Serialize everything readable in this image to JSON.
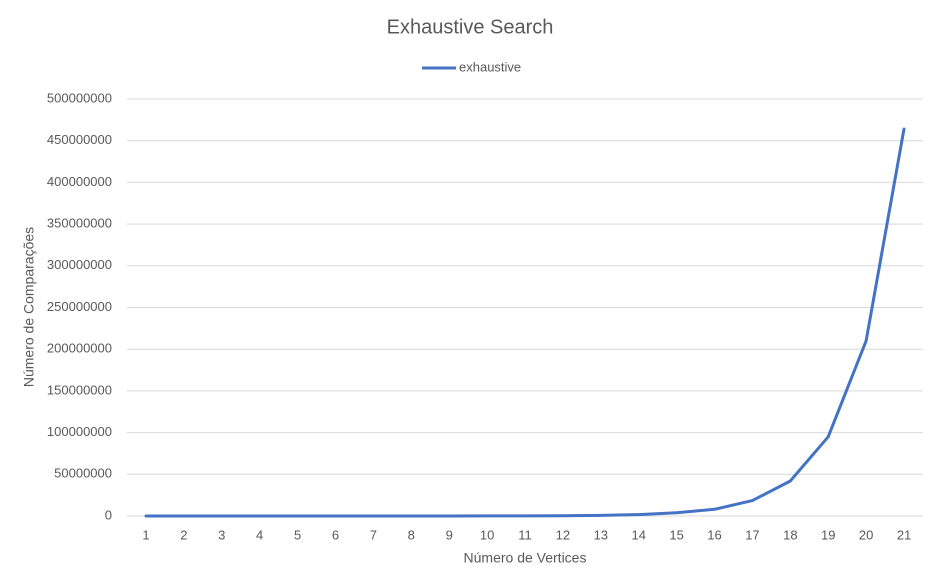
{
  "chart_data": {
    "type": "line",
    "title": "Exhaustive Search",
    "x_label": "Número de Vertices",
    "y_label": "Número de Comparações",
    "categories": [
      "1",
      "2",
      "3",
      "4",
      "5",
      "6",
      "7",
      "8",
      "9",
      "10",
      "11",
      "12",
      "13",
      "14",
      "15",
      "16",
      "17",
      "18",
      "19",
      "20",
      "21"
    ],
    "series": [
      {
        "name": "exhaustive",
        "color": "#4472c4",
        "values": [
          1,
          8,
          40,
          150,
          500,
          1500,
          4000,
          10000,
          25000,
          60000,
          140000,
          330000,
          750000,
          1700000,
          3800000,
          8000000,
          18500000,
          42000000,
          95000000,
          210000000,
          464000000
        ]
      }
    ],
    "ylim": [
      0,
      500000000
    ],
    "yticks": [
      0,
      50000000,
      100000000,
      150000000,
      200000000,
      250000000,
      300000000,
      350000000,
      400000000,
      450000000,
      500000000
    ],
    "grid": true,
    "legend": "top"
  }
}
